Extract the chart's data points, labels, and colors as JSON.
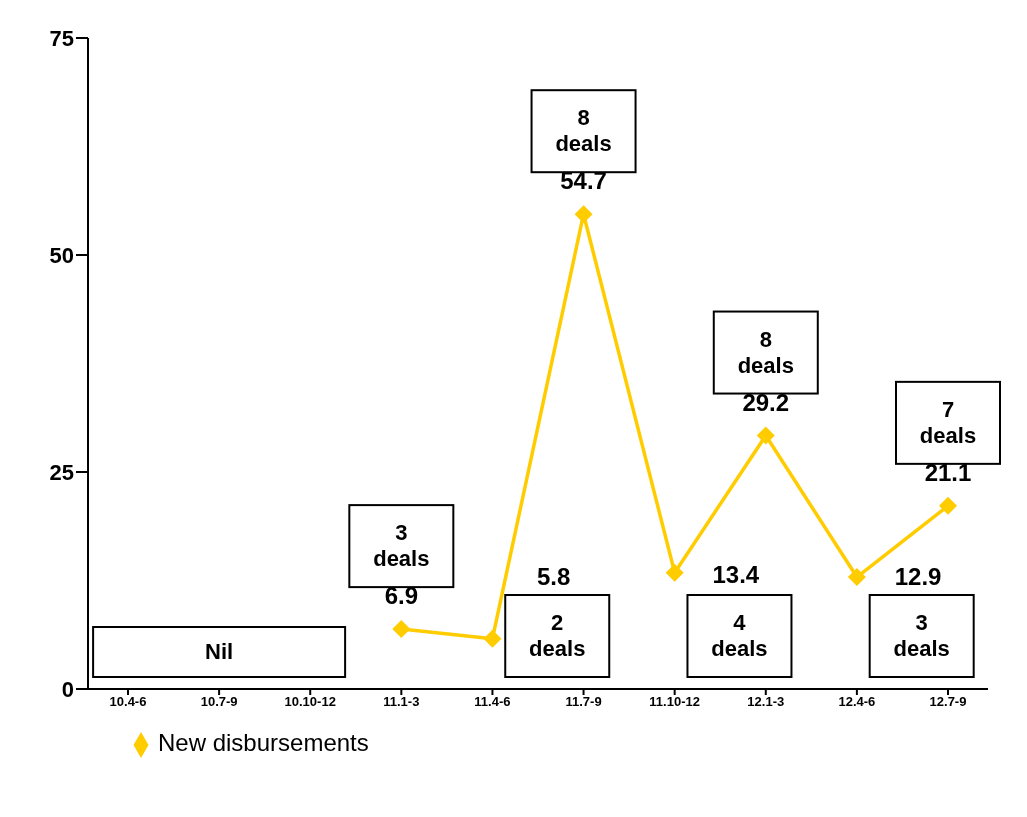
{
  "chart_data": {
    "type": "line",
    "categories": [
      "10.4-6",
      "10.7-9",
      "10.10-12",
      "11.1-3",
      "11.4-6",
      "11.7-9",
      "11.10-12",
      "12.1-3",
      "12.4-6",
      "12.7-9"
    ],
    "series": [
      {
        "name": "New disbursements",
        "color": "#ffcc00",
        "values": [
          null,
          null,
          null,
          6.9,
          5.8,
          54.7,
          13.4,
          29.2,
          12.9,
          21.1
        ]
      }
    ],
    "ylim": [
      0,
      75
    ],
    "yticks": [
      0,
      25,
      50,
      75
    ],
    "grid": false,
    "legend": "bottom left",
    "marker": "diamond",
    "line_style": "solid",
    "data_labels": true,
    "annotations": [
      "Nil",
      {
        "text": "3\ndeals",
        "x": "11.1-3",
        "y": 6.9
      },
      {
        "text": "2\ndeals",
        "x": "11.4-6",
        "y": 5.8
      },
      {
        "text": "8\ndeals",
        "x": "11.7-9",
        "y": 54.7
      },
      {
        "text": "4\ndeals",
        "x": "11.10-12",
        "y": 13.4
      },
      {
        "text": "8\ndeals",
        "x": "12.1-3",
        "y": 29.2
      },
      {
        "text": "3\ndeals",
        "x": "12.4-6",
        "y": 12.9
      },
      {
        "text": "7\ndeals",
        "x": "12.7-9",
        "y": 21.1
      }
    ]
  }
}
